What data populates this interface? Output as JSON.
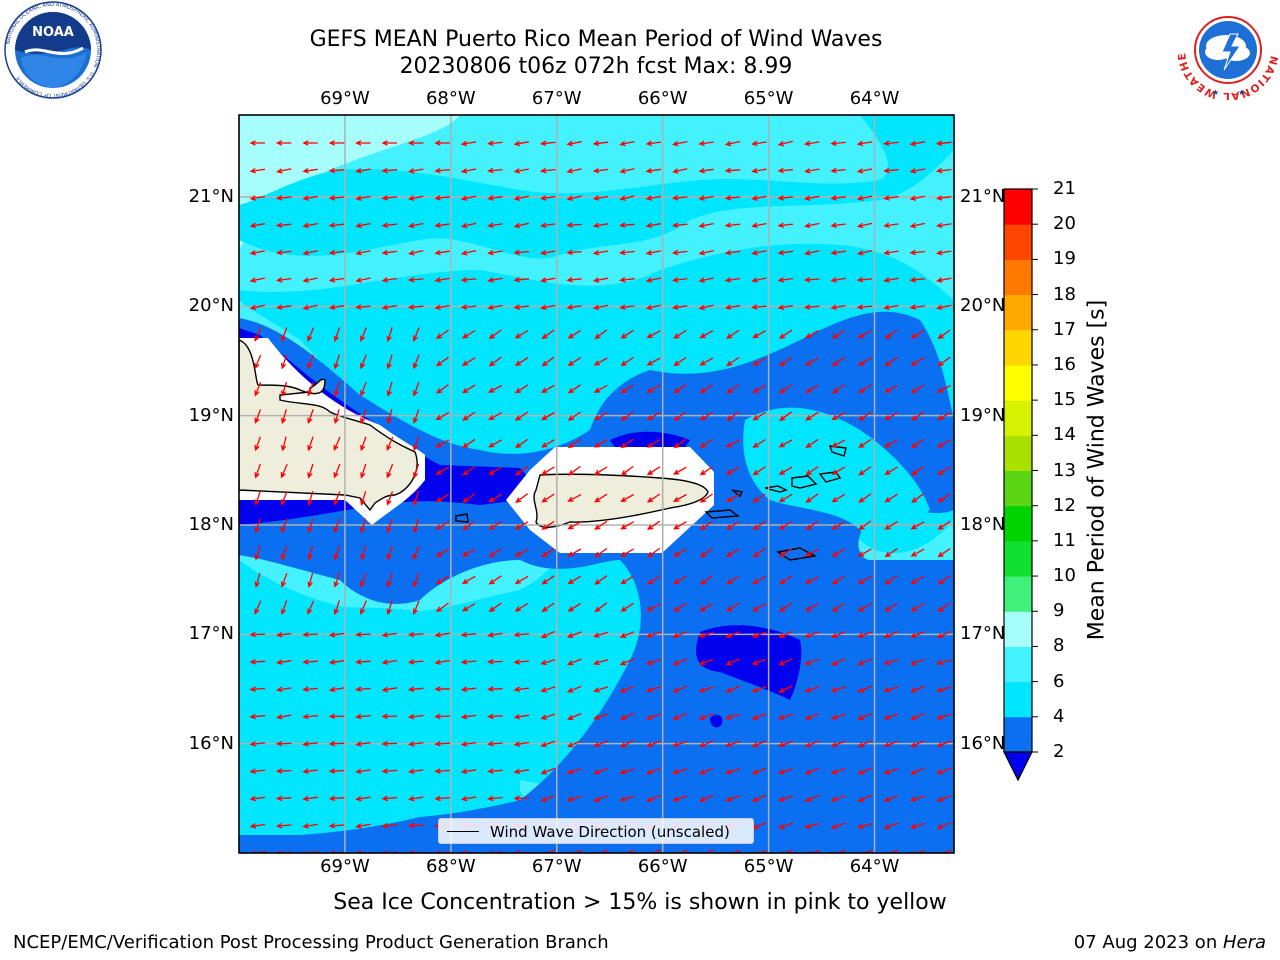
{
  "title": {
    "line1": "GEFS MEAN Puerto Rico Mean Period of Wind Waves",
    "line2": "20230806 t06z 072h fcst   Max: 8.99"
  },
  "map": {
    "lon_range": [
      -70.0,
      -63.25
    ],
    "lat_range": [
      15.0,
      21.75
    ],
    "lon_ticks": [
      {
        "value": -69,
        "label": "69°W"
      },
      {
        "value": -68,
        "label": "68°W"
      },
      {
        "value": -67,
        "label": "67°W"
      },
      {
        "value": -66,
        "label": "66°W"
      },
      {
        "value": -65,
        "label": "65°W"
      },
      {
        "value": -64,
        "label": "64°W"
      }
    ],
    "lat_ticks": [
      {
        "value": 21,
        "label": "21°N"
      },
      {
        "value": 20,
        "label": "20°N"
      },
      {
        "value": 19,
        "label": "19°N"
      },
      {
        "value": 18,
        "label": "18°N"
      },
      {
        "value": 17,
        "label": "17°N"
      },
      {
        "value": 16,
        "label": "16°N"
      }
    ],
    "grid": true,
    "ocean_color": "#00FFFF",
    "land_color": "#EFEEDC",
    "arrow_color": "#FF0000",
    "legend": {
      "label": "Wind Wave Direction (unscaled)",
      "placement": "lower-center"
    }
  },
  "colorbar": {
    "label": "Mean Period of Wind Waves [s]",
    "unit": "s",
    "levels": [
      2,
      4,
      6,
      8,
      9,
      10,
      11,
      12,
      13,
      14,
      15,
      16,
      17,
      18,
      19,
      20,
      21
    ],
    "colors": [
      "#0A6FF0",
      "#00E6FF",
      "#44F2FF",
      "#A6FFFB",
      "#40F07A",
      "#11E030",
      "#00D400",
      "#5CD612",
      "#A8E000",
      "#D6F200",
      "#FFFF00",
      "#FFD600",
      "#FFA800",
      "#FF7800",
      "#FF4600",
      "#FF0000"
    ],
    "under_color": "#0000EE",
    "tick_labels": [
      "2",
      "4",
      "6",
      "8",
      "9",
      "10",
      "11",
      "12",
      "13",
      "14",
      "15",
      "16",
      "17",
      "18",
      "19",
      "20",
      "21"
    ]
  },
  "footer": {
    "note": "Sea Ice Concentration > 15% is shown in pink to yellow",
    "left": "NCEP/EMC/Verification Post Processing Product Generation Branch",
    "right_prefix": "07 Aug 2023 on ",
    "right_host": "Hera"
  },
  "logos": {
    "left": "noaa-logo",
    "right": "national-weather-service-logo",
    "left_text": "NOAA",
    "left_ring_text": "NATIONAL OCEANIC AND ATMOSPHERIC ADMINISTRATION · U.S. DEPARTMENT OF COMMERCE",
    "right_ring_text": "NATIONAL WEATHER SERVICE"
  }
}
